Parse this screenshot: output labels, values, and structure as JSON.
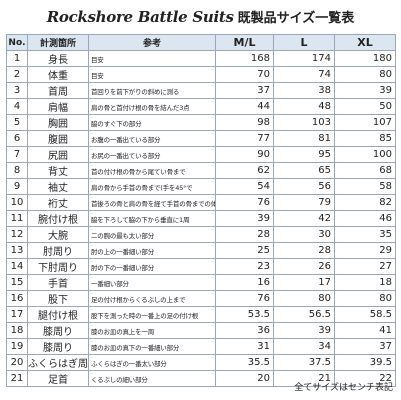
{
  "title": {
    "brand": "Rockshore Battle Suits",
    "subtitle": "既製品サイズ一覧表"
  },
  "headers": {
    "no": "No.",
    "item": "計測箇所",
    "ref": "参考",
    "m": "M/L",
    "l": "L",
    "xl": "XL"
  },
  "rows": [
    {
      "no": "1",
      "item": "身長",
      "ref": "目安",
      "m": "168",
      "l": "174",
      "xl": "180"
    },
    {
      "no": "2",
      "item": "体重",
      "ref": "目安",
      "m": "70",
      "l": "74",
      "xl": "80"
    },
    {
      "no": "3",
      "item": "首周",
      "ref": "首回りを前下がりの斜めに測る",
      "m": "37",
      "l": "38",
      "xl": "39"
    },
    {
      "no": "4",
      "item": "肩幅",
      "ref": "肩の骨と首付け根の骨を結んだ3点",
      "m": "44",
      "l": "48",
      "xl": "50"
    },
    {
      "no": "5",
      "item": "胸囲",
      "ref": "脇のすぐ下の部分",
      "m": "98",
      "l": "103",
      "xl": "107"
    },
    {
      "no": "6",
      "item": "腹囲",
      "ref": "お腹の一番出ている部分",
      "m": "77",
      "l": "81",
      "xl": "85"
    },
    {
      "no": "7",
      "item": "尻囲",
      "ref": "お尻の一番出ている部分",
      "m": "90",
      "l": "95",
      "xl": "100"
    },
    {
      "no": "8",
      "item": "背丈",
      "ref": "首の付け根の骨から尾てい骨まで",
      "m": "62",
      "l": "65",
      "xl": "68"
    },
    {
      "no": "9",
      "item": "袖丈",
      "ref": "肩の骨から手首の骨まで(手を45°で",
      "m": "54",
      "l": "56",
      "xl": "58"
    },
    {
      "no": "10",
      "item": "裄丈",
      "ref": "首後ろの骨と肩の骨を経て手首の骨までの体半分",
      "m": "76",
      "l": "79",
      "xl": "82"
    },
    {
      "no": "11",
      "item": "腕付け根",
      "ref": "脇を下ろして脇の下から垂直に1周",
      "m": "39",
      "l": "42",
      "xl": "46"
    },
    {
      "no": "12",
      "item": "大腕",
      "ref": "二の腕の最も太い部分",
      "m": "28",
      "l": "30",
      "xl": "35"
    },
    {
      "no": "13",
      "item": "肘周り",
      "ref": "肘の上の一番細い部分",
      "m": "25",
      "l": "28",
      "xl": "29"
    },
    {
      "no": "14",
      "item": "下肘周り",
      "ref": "肘の下の一番細い部分",
      "m": "23",
      "l": "26",
      "xl": "27"
    },
    {
      "no": "15",
      "item": "手首",
      "ref": "一番細い部分",
      "m": "16",
      "l": "17",
      "xl": "18"
    },
    {
      "no": "16",
      "item": "股下",
      "ref": "足の付け根からくるぶしの上まで",
      "m": "76",
      "l": "80",
      "xl": "80"
    },
    {
      "no": "17",
      "item": "腿付け根",
      "ref": "股下を測った時の一番上の足の付け根",
      "m": "53.5",
      "l": "56.5",
      "xl": "58.5"
    },
    {
      "no": "18",
      "item": "膝周り",
      "ref": "膝のお皿の真上を一周",
      "m": "36",
      "l": "39",
      "xl": "41"
    },
    {
      "no": "19",
      "item": "膝周り",
      "ref": "膝のお皿の真下の一番細い部分",
      "m": "31",
      "l": "34",
      "xl": "37"
    },
    {
      "no": "20",
      "item": "ふくらはぎ周り",
      "ref": "ふくらはぎの一番太い部分",
      "m": "35.5",
      "l": "37.5",
      "xl": "39.5"
    },
    {
      "no": "21",
      "item": "足首",
      "ref": "くるぶしの細い部分",
      "m": "20",
      "l": "21",
      "xl": "22"
    }
  ],
  "footer": "全てサイズはセンチ表記"
}
